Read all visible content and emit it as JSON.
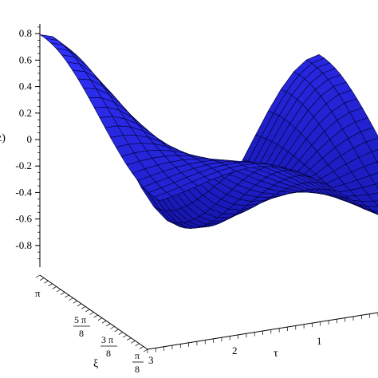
{
  "chart_data": {
    "type": "surface3d",
    "z_axis": {
      "label": "z)",
      "ticks": [
        {
          "value": 0.8,
          "label": "0.8"
        },
        {
          "value": 0.6,
          "label": "0.6"
        },
        {
          "value": 0.4,
          "label": "0.4"
        },
        {
          "value": 0.2,
          "label": "0.2"
        },
        {
          "value": 0,
          "label": "0"
        },
        {
          "value": -0.2,
          "label": "-0.2"
        },
        {
          "value": -0.4,
          "label": "-0.4"
        },
        {
          "value": -0.6,
          "label": "-0.6"
        },
        {
          "value": -0.8,
          "label": "-0.8"
        }
      ]
    },
    "xi_axis": {
      "label": "ξ",
      "ticks": [
        {
          "label": "π"
        },
        {
          "label_num": "5 π",
          "label_den": "8"
        },
        {
          "label_num": "3 π",
          "label_den": "8"
        },
        {
          "label_num": "π",
          "label_den": "8"
        }
      ]
    },
    "tau_axis": {
      "label": "τ",
      "ticks": [
        {
          "value": 3,
          "label": "3"
        },
        {
          "value": 2,
          "label": "2"
        },
        {
          "value": 1,
          "label": "1"
        }
      ]
    },
    "surface_color": "#1414f0",
    "grid_line_color": "#000033"
  }
}
